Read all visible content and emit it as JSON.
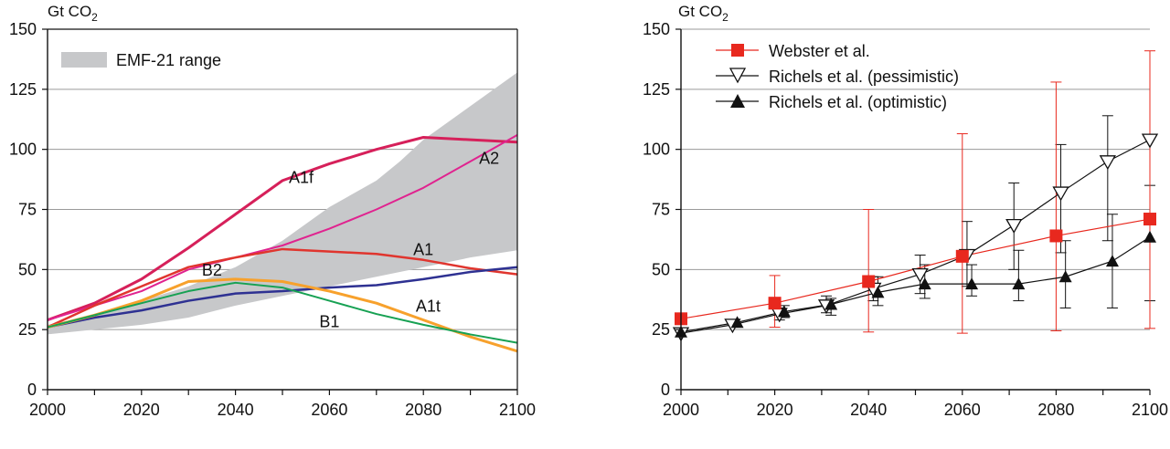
{
  "chart_data": [
    {
      "type": "line",
      "ylabel": "Gt CO",
      "ylabel_sub": "2",
      "xlim": [
        2000,
        2100
      ],
      "ylim": [
        0,
        150
      ],
      "xticks": [
        "2000",
        "2020",
        "2040",
        "2060",
        "2080",
        "2100"
      ],
      "yticks": [
        "0",
        "25",
        "50",
        "75",
        "100",
        "125",
        "150"
      ],
      "grid": "horizontal",
      "legend": {
        "placement": "top-left",
        "entries": [
          "EMF-21 range"
        ]
      },
      "band": {
        "name": "EMF-21 range",
        "color": "#c7c8ca",
        "upper": [
          [
            2000,
            27
          ],
          [
            2010,
            31
          ],
          [
            2020,
            37
          ],
          [
            2030,
            43
          ],
          [
            2040,
            51
          ],
          [
            2050,
            62
          ],
          [
            2060,
            76
          ],
          [
            2070,
            87
          ],
          [
            2075,
            95
          ],
          [
            2080,
            104
          ],
          [
            2090,
            118
          ],
          [
            2100,
            132
          ]
        ],
        "lower": [
          [
            2000,
            23
          ],
          [
            2010,
            25
          ],
          [
            2020,
            27
          ],
          [
            2030,
            30
          ],
          [
            2040,
            35
          ],
          [
            2050,
            39
          ],
          [
            2060,
            43
          ],
          [
            2070,
            47
          ],
          [
            2080,
            51
          ],
          [
            2090,
            55
          ],
          [
            2100,
            58
          ]
        ]
      },
      "series": [
        {
          "name": "A1f",
          "color": "#d6205a",
          "width": 3,
          "points": [
            [
              2000,
              29
            ],
            [
              2010,
              36
            ],
            [
              2020,
              46
            ],
            [
              2030,
              59
            ],
            [
              2040,
              73
            ],
            [
              2050,
              87
            ],
            [
              2060,
              94
            ],
            [
              2070,
              100
            ],
            [
              2080,
              105
            ],
            [
              2090,
              104
            ],
            [
              2100,
              103
            ]
          ]
        },
        {
          "name": "A2",
          "color": "#e0238f",
          "width": 2,
          "points": [
            [
              2000,
              29
            ],
            [
              2010,
              35
            ],
            [
              2020,
              41
            ],
            [
              2030,
              50
            ],
            [
              2040,
              55
            ],
            [
              2050,
              60
            ],
            [
              2060,
              67
            ],
            [
              2070,
              75
            ],
            [
              2080,
              84
            ],
            [
              2090,
              95
            ],
            [
              2100,
              106
            ]
          ]
        },
        {
          "name": "A1",
          "color": "#e0352e",
          "width": 2.5,
          "points": [
            [
              2000,
              26
            ],
            [
              2010,
              35
            ],
            [
              2020,
              43
            ],
            [
              2030,
              51
            ],
            [
              2040,
              55
            ],
            [
              2050,
              58.5
            ],
            [
              2060,
              57.5
            ],
            [
              2070,
              56.5
            ],
            [
              2080,
              54
            ],
            [
              2090,
              50.5
            ],
            [
              2100,
              48
            ]
          ]
        },
        {
          "name": "B2",
          "color": "#2e3192",
          "width": 2.5,
          "points": [
            [
              2000,
              26
            ],
            [
              2010,
              30
            ],
            [
              2020,
              33
            ],
            [
              2030,
              37
            ],
            [
              2040,
              40
            ],
            [
              2050,
              41
            ],
            [
              2060,
              42.5
            ],
            [
              2070,
              43.5
            ],
            [
              2080,
              46
            ],
            [
              2090,
              49
            ],
            [
              2100,
              51
            ]
          ]
        },
        {
          "name": "A1t",
          "color": "#f7a12c",
          "width": 3,
          "points": [
            [
              2000,
              26
            ],
            [
              2010,
              31
            ],
            [
              2020,
              37
            ],
            [
              2030,
              45
            ],
            [
              2040,
              46
            ],
            [
              2050,
              45
            ],
            [
              2060,
              41
            ],
            [
              2070,
              36
            ],
            [
              2080,
              29
            ],
            [
              2090,
              22
            ],
            [
              2100,
              16
            ]
          ]
        },
        {
          "name": "B1",
          "color": "#17a153",
          "width": 2,
          "points": [
            [
              2000,
              26
            ],
            [
              2010,
              31
            ],
            [
              2020,
              36
            ],
            [
              2030,
              41
            ],
            [
              2040,
              44.5
            ],
            [
              2050,
              42.5
            ],
            [
              2060,
              37
            ],
            [
              2070,
              31.5
            ],
            [
              2080,
              27
            ],
            [
              2090,
              23
            ],
            [
              2100,
              19.5
            ]
          ]
        }
      ],
      "annotations": [
        {
          "text": "A1f",
          "x": 2054,
          "y": 86
        },
        {
          "text": "A2",
          "x": 2094,
          "y": 94
        },
        {
          "text": "A1",
          "x": 2080,
          "y": 56
        },
        {
          "text": "B2",
          "x": 2035,
          "y": 47.5
        },
        {
          "text": "A1t",
          "x": 2081,
          "y": 32.5
        },
        {
          "text": "B1",
          "x": 2060,
          "y": 26
        }
      ]
    },
    {
      "type": "line",
      "ylabel": "Gt CO",
      "ylabel_sub": "2",
      "xlim": [
        2000,
        2100
      ],
      "ylim": [
        0,
        150
      ],
      "xticks": [
        "2000",
        "2020",
        "2040",
        "2060",
        "2080",
        "2100"
      ],
      "yticks": [
        "0",
        "25",
        "50",
        "75",
        "100",
        "125",
        "150"
      ],
      "grid": "horizontal",
      "legend": {
        "placement": "top-left",
        "entries": [
          "Webster et al.",
          "Richels et al. (pessimistic)",
          "Richels et al. (optimistic)"
        ]
      },
      "series": [
        {
          "name": "Webster et al.",
          "color": "#e8281e",
          "marker": "square",
          "points": [
            [
              2000,
              29.5
            ],
            [
              2020,
              36
            ],
            [
              2040,
              45
            ],
            [
              2060,
              55.5
            ],
            [
              2080,
              64
            ],
            [
              2100,
              71
            ]
          ],
          "error": [
            [
              null,
              null
            ],
            [
              26,
              47.5
            ],
            [
              24,
              75
            ],
            [
              23.5,
              106.5
            ],
            [
              24.5,
              128
            ],
            [
              25.5,
              141
            ]
          ]
        },
        {
          "name": "Richels et al. (pessimistic)",
          "color": "#111111",
          "marker": "triangle-down",
          "points": [
            [
              2000,
              23.5
            ],
            [
              2011,
              27
            ],
            [
              2021,
              31.5
            ],
            [
              2031,
              35
            ],
            [
              2041,
              42
            ],
            [
              2051,
              48
            ],
            [
              2061,
              56
            ],
            [
              2071,
              68.5
            ],
            [
              2081,
              82
            ],
            [
              2091,
              95
            ],
            [
              2100,
              104
            ]
          ],
          "error": [
            [
              null,
              null
            ],
            [
              null,
              null
            ],
            [
              29,
              34
            ],
            [
              32,
              39
            ],
            [
              37,
              47
            ],
            [
              40,
              56
            ],
            [
              43,
              70
            ],
            [
              50,
              86
            ],
            [
              57,
              102
            ],
            [
              62,
              114
            ],
            [
              null,
              null
            ]
          ]
        },
        {
          "name": "Richels et al. (optimistic)",
          "color": "#111111",
          "marker": "triangle-up",
          "points": [
            [
              2000,
              24
            ],
            [
              2012,
              28
            ],
            [
              2022,
              32.5
            ],
            [
              2032,
              35.5
            ],
            [
              2042,
              40.5
            ],
            [
              2052,
              44
            ],
            [
              2062,
              44
            ],
            [
              2072,
              44
            ],
            [
              2082,
              47
            ],
            [
              2092,
              53.5
            ],
            [
              2100,
              63.5
            ]
          ],
          "error": [
            [
              null,
              null
            ],
            [
              null,
              null
            ],
            [
              30,
              35
            ],
            [
              31,
              38
            ],
            [
              35,
              47
            ],
            [
              38,
              52
            ],
            [
              39,
              52
            ],
            [
              37,
              58
            ],
            [
              34,
              62
            ],
            [
              34,
              73
            ],
            [
              37,
              85
            ]
          ]
        }
      ]
    }
  ]
}
